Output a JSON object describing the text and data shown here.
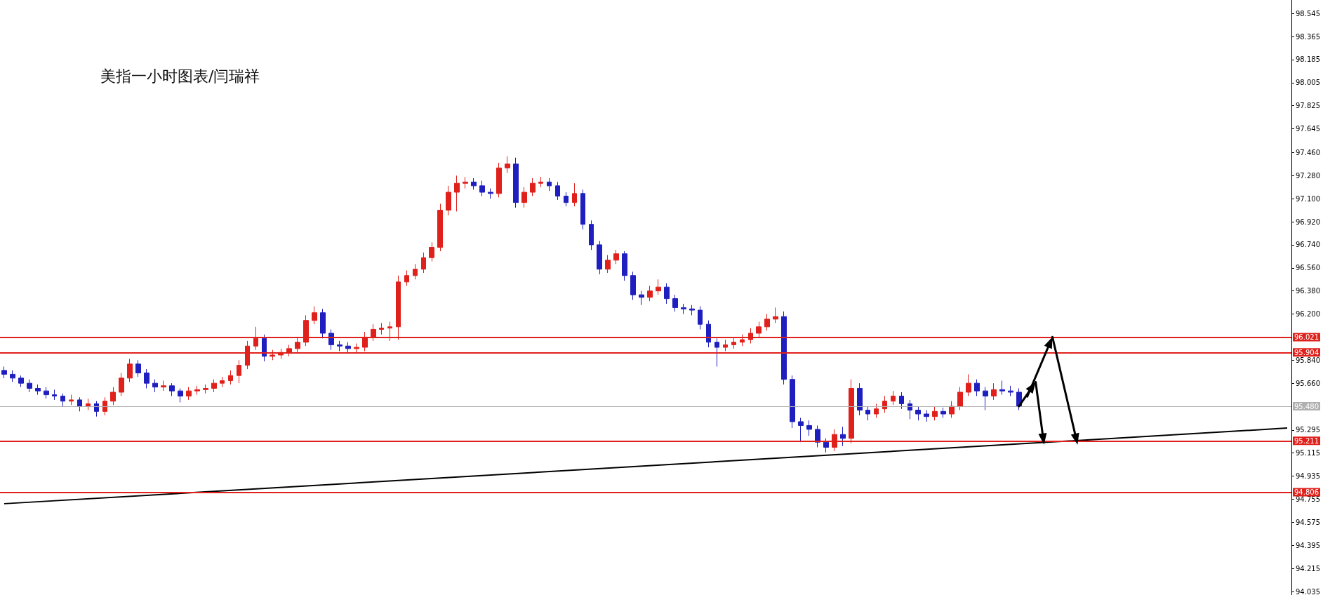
{
  "chart_data": {
    "type": "candlestick",
    "title": "美指一小时图表/闫瑞祥",
    "categories": [
      null,
      null,
      null,
      null,
      null,
      null,
      null,
      null,
      null,
      null,
      null,
      null,
      null,
      null,
      null,
      null,
      null,
      null,
      null,
      null,
      null,
      null,
      null,
      null,
      null,
      null,
      null,
      null,
      null,
      null,
      null,
      null,
      null,
      null,
      null,
      null,
      null,
      null,
      null,
      null,
      null,
      null,
      null,
      null,
      null,
      null,
      null,
      null,
      null,
      null,
      null,
      null,
      null,
      null,
      null,
      null,
      null,
      null,
      null,
      null,
      null,
      null,
      null,
      null,
      null,
      null,
      null,
      null,
      null,
      null,
      null,
      null,
      null,
      null,
      null,
      null,
      null,
      null,
      null,
      null,
      null,
      null,
      null,
      null,
      null,
      null,
      null,
      null,
      null,
      null,
      null,
      null,
      null,
      null,
      null,
      null,
      null,
      null,
      null,
      null,
      null,
      null,
      null,
      null,
      null,
      null,
      null,
      null,
      null,
      null,
      null,
      null,
      null,
      null,
      null,
      null,
      null,
      null,
      null,
      null,
      null,
      null,
      null,
      null,
      null,
      null,
      null,
      null,
      null,
      null,
      null,
      null,
      null,
      null,
      null,
      null,
      null,
      null,
      null,
      null,
      null,
      null,
      null,
      null,
      null,
      null,
      null,
      null,
      null,
      null,
      null,
      null,
      null,
      null
    ],
    "series": [
      {
        "ohlc": [
          [
            95.76,
            95.79,
            95.7,
            95.73
          ],
          [
            95.73,
            95.76,
            95.67,
            95.7
          ],
          [
            95.7,
            95.72,
            95.63,
            95.66
          ],
          [
            95.66,
            95.69,
            95.59,
            95.62
          ],
          [
            95.62,
            95.65,
            95.57,
            95.6
          ],
          [
            95.6,
            95.63,
            95.54,
            95.57
          ],
          [
            95.57,
            95.61,
            95.53,
            95.56
          ],
          [
            95.56,
            95.58,
            95.48,
            95.52
          ],
          [
            95.52,
            95.57,
            95.49,
            95.53
          ],
          [
            95.53,
            95.55,
            95.44,
            95.48
          ],
          [
            95.48,
            95.54,
            95.45,
            95.5
          ],
          [
            95.5,
            95.52,
            95.4,
            95.44
          ],
          [
            95.44,
            95.55,
            95.41,
            95.52
          ],
          [
            95.52,
            95.63,
            95.49,
            95.59
          ],
          [
            95.59,
            95.74,
            95.56,
            95.7
          ],
          [
            95.7,
            95.85,
            95.67,
            95.81
          ],
          [
            95.81,
            95.84,
            95.71,
            95.74
          ],
          [
            95.74,
            95.77,
            95.62,
            95.66
          ],
          [
            95.66,
            95.69,
            95.59,
            95.63
          ],
          [
            95.63,
            95.68,
            95.6,
            95.64
          ],
          [
            95.64,
            95.66,
            95.56,
            95.6
          ],
          [
            95.6,
            95.62,
            95.51,
            95.56
          ],
          [
            95.56,
            95.63,
            95.53,
            95.6
          ],
          [
            95.6,
            95.64,
            95.57,
            95.61
          ],
          [
            95.61,
            95.65,
            95.58,
            95.62
          ],
          [
            95.62,
            95.69,
            95.59,
            95.66
          ],
          [
            95.66,
            95.71,
            95.63,
            95.68
          ],
          [
            95.68,
            95.76,
            95.65,
            95.72
          ],
          [
            95.72,
            95.84,
            95.66,
            95.8
          ],
          [
            95.8,
            95.99,
            95.77,
            95.95
          ],
          [
            95.95,
            96.1,
            95.92,
            96.01
          ],
          [
            96.01,
            96.04,
            95.83,
            95.87
          ],
          [
            95.87,
            95.92,
            95.84,
            95.88
          ],
          [
            95.88,
            95.93,
            95.85,
            95.9
          ],
          [
            95.9,
            95.96,
            95.87,
            95.93
          ],
          [
            95.93,
            96.02,
            95.9,
            95.98
          ],
          [
            95.98,
            96.19,
            95.95,
            96.15
          ],
          [
            96.15,
            96.26,
            96.12,
            96.21
          ],
          [
            96.21,
            96.24,
            96.01,
            96.05
          ],
          [
            96.05,
            96.08,
            95.92,
            95.96
          ],
          [
            95.96,
            95.99,
            95.91,
            95.95
          ],
          [
            95.95,
            95.98,
            95.89,
            95.93
          ],
          [
            95.93,
            95.97,
            95.9,
            95.94
          ],
          [
            95.94,
            96.06,
            95.91,
            96.02
          ],
          [
            96.02,
            96.12,
            95.99,
            96.08
          ],
          [
            96.08,
            96.13,
            96.04,
            96.09
          ],
          [
            96.09,
            96.14,
            95.99,
            96.1
          ],
          [
            96.1,
            96.5,
            96.0,
            96.45
          ],
          [
            96.45,
            96.54,
            96.42,
            96.5
          ],
          [
            96.5,
            96.59,
            96.47,
            96.55
          ],
          [
            96.55,
            96.68,
            96.52,
            96.64
          ],
          [
            96.64,
            96.76,
            96.61,
            96.72
          ],
          [
            96.72,
            97.06,
            96.69,
            97.01
          ],
          [
            97.01,
            97.2,
            96.97,
            97.15
          ],
          [
            97.15,
            97.28,
            97.0,
            97.22
          ],
          [
            97.22,
            97.27,
            97.18,
            97.23
          ],
          [
            97.23,
            97.26,
            97.17,
            97.2
          ],
          [
            97.2,
            97.24,
            97.12,
            97.15
          ],
          [
            97.15,
            97.18,
            97.1,
            97.14
          ],
          [
            97.14,
            97.38,
            97.11,
            97.34
          ],
          [
            97.34,
            97.43,
            97.3,
            97.37
          ],
          [
            97.37,
            97.42,
            97.03,
            97.07
          ],
          [
            97.07,
            97.19,
            97.03,
            97.15
          ],
          [
            97.15,
            97.26,
            97.12,
            97.22
          ],
          [
            97.22,
            97.27,
            97.19,
            97.23
          ],
          [
            97.23,
            97.26,
            97.16,
            97.2
          ],
          [
            97.2,
            97.23,
            97.09,
            97.12
          ],
          [
            97.12,
            97.15,
            97.04,
            97.07
          ],
          [
            97.07,
            97.22,
            97.04,
            97.14
          ],
          [
            97.14,
            97.17,
            96.86,
            96.9
          ],
          [
            96.9,
            96.93,
            96.7,
            96.74
          ],
          [
            96.74,
            96.77,
            96.51,
            96.55
          ],
          [
            96.55,
            96.66,
            96.52,
            96.62
          ],
          [
            96.62,
            96.7,
            96.59,
            96.67
          ],
          [
            96.67,
            96.69,
            96.46,
            96.5
          ],
          [
            96.5,
            96.53,
            96.31,
            96.35
          ],
          [
            96.35,
            96.38,
            96.27,
            96.33
          ],
          [
            96.33,
            96.42,
            96.3,
            96.38
          ],
          [
            96.38,
            96.47,
            96.35,
            96.41
          ],
          [
            96.41,
            96.44,
            96.28,
            96.32
          ],
          [
            96.32,
            96.35,
            96.22,
            96.25
          ],
          [
            96.25,
            96.28,
            96.2,
            96.24
          ],
          [
            96.24,
            96.27,
            96.19,
            96.23
          ],
          [
            96.23,
            96.26,
            96.08,
            96.12
          ],
          [
            96.12,
            96.15,
            95.94,
            95.98
          ],
          [
            95.98,
            96.01,
            95.79,
            95.94
          ],
          [
            95.94,
            96.0,
            95.91,
            95.96
          ],
          [
            95.96,
            96.02,
            95.93,
            95.98
          ],
          [
            95.98,
            96.04,
            95.95,
            96.0
          ],
          [
            96.0,
            96.09,
            95.97,
            96.05
          ],
          [
            96.05,
            96.14,
            96.02,
            96.1
          ],
          [
            96.1,
            96.2,
            96.07,
            96.16
          ],
          [
            96.16,
            96.25,
            96.13,
            96.18
          ],
          [
            96.18,
            96.22,
            95.65,
            95.69
          ],
          [
            95.69,
            95.72,
            95.31,
            95.36
          ],
          [
            95.36,
            95.39,
            95.2,
            95.33
          ],
          [
            95.33,
            95.37,
            95.25,
            95.3
          ],
          [
            95.3,
            95.33,
            95.16,
            95.2
          ],
          [
            95.2,
            95.23,
            95.12,
            95.16
          ],
          [
            95.16,
            95.3,
            95.13,
            95.26
          ],
          [
            95.26,
            95.32,
            95.17,
            95.23
          ],
          [
            95.23,
            95.69,
            95.19,
            95.62
          ],
          [
            95.62,
            95.66,
            95.41,
            95.45
          ],
          [
            95.45,
            95.48,
            95.37,
            95.42
          ],
          [
            95.42,
            95.5,
            95.39,
            95.46
          ],
          [
            95.46,
            95.56,
            95.43,
            95.52
          ],
          [
            95.52,
            95.6,
            95.49,
            95.56
          ],
          [
            95.56,
            95.59,
            95.46,
            95.5
          ],
          [
            95.5,
            95.53,
            95.38,
            95.45
          ],
          [
            95.45,
            95.48,
            95.37,
            95.42
          ],
          [
            95.42,
            95.45,
            95.36,
            95.4
          ],
          [
            95.4,
            95.48,
            95.37,
            95.44
          ],
          [
            95.44,
            95.47,
            95.39,
            95.42
          ],
          [
            95.42,
            95.52,
            95.39,
            95.48
          ],
          [
            95.48,
            95.63,
            95.45,
            95.59
          ],
          [
            95.59,
            95.73,
            95.56,
            95.66
          ],
          [
            95.66,
            95.69,
            95.56,
            95.6
          ],
          [
            95.6,
            95.63,
            95.45,
            95.56
          ],
          [
            95.56,
            95.66,
            95.53,
            95.61
          ],
          [
            95.61,
            95.68,
            95.57,
            95.6
          ],
          [
            95.6,
            95.64,
            95.56,
            95.59
          ],
          [
            95.59,
            95.62,
            95.45,
            95.48
          ],
          null,
          null,
          null,
          null,
          null,
          null,
          null,
          null,
          null,
          null,
          null,
          null,
          null,
          null,
          null,
          null,
          null,
          null,
          null,
          null,
          null,
          null,
          null,
          null,
          null,
          null,
          null,
          null,
          null,
          null,
          null,
          null
        ],
        "colors": [
          "#1f1fc0",
          "#1f1fc0",
          "#1f1fc0",
          "#1f1fc0",
          "#1f1fc0",
          "#1f1fc0",
          "#1f1fc0",
          "#1f1fc0",
          "#e0201b",
          "#1f1fc0",
          "#e0201b",
          "#1f1fc0",
          "#e0201b",
          "#e0201b",
          "#e0201b",
          "#e0201b",
          "#1f1fc0",
          "#1f1fc0",
          "#1f1fc0",
          "#e0201b",
          "#1f1fc0",
          "#1f1fc0",
          "#e0201b",
          "#e0201b",
          "#e0201b",
          "#e0201b",
          "#e0201b",
          "#e0201b",
          "#e0201b",
          "#e0201b",
          "#e0201b",
          "#1f1fc0",
          "#e0201b",
          "#e0201b",
          "#e0201b",
          "#e0201b",
          "#e0201b",
          "#e0201b",
          "#1f1fc0",
          "#1f1fc0",
          "#1f1fc0",
          "#1f1fc0",
          "#e0201b",
          "#e0201b",
          "#e0201b",
          "#e0201b",
          "#e0201b",
          "#e0201b",
          "#e0201b",
          "#e0201b",
          "#e0201b",
          "#e0201b",
          "#e0201b",
          "#e0201b",
          "#e0201b",
          "#e0201b",
          "#1f1fc0",
          "#1f1fc0",
          "#1f1fc0",
          "#e0201b",
          "#e0201b",
          "#1f1fc0",
          "#e0201b",
          "#e0201b",
          "#e0201b",
          "#1f1fc0",
          "#1f1fc0",
          "#1f1fc0",
          "#e0201b",
          "#1f1fc0",
          "#1f1fc0",
          "#1f1fc0",
          "#e0201b",
          "#e0201b",
          "#1f1fc0",
          "#1f1fc0",
          "#1f1fc0",
          "#e0201b",
          "#e0201b",
          "#1f1fc0",
          "#1f1fc0",
          "#1f1fc0",
          "#1f1fc0",
          "#1f1fc0",
          "#1f1fc0",
          "#1f1fc0",
          "#e0201b",
          "#e0201b",
          "#e0201b",
          "#e0201b",
          "#e0201b",
          "#e0201b",
          "#e0201b",
          "#1f1fc0",
          "#1f1fc0",
          "#1f1fc0",
          "#1f1fc0",
          "#1f1fc0",
          "#1f1fc0",
          "#e0201b",
          "#1f1fc0",
          "#e0201b",
          "#1f1fc0",
          "#1f1fc0",
          "#e0201b",
          "#e0201b",
          "#e0201b",
          "#1f1fc0",
          "#1f1fc0",
          "#1f1fc0",
          "#1f1fc0",
          "#e0201b",
          "#1f1fc0",
          "#e0201b",
          "#e0201b",
          "#e0201b",
          "#1f1fc0",
          "#1f1fc0",
          "#e0201b",
          "#1f1fc0",
          "#1f1fc0",
          "#1f1fc0",
          null,
          null,
          null,
          null,
          null,
          null,
          null,
          null,
          null,
          null,
          null,
          null,
          null,
          null,
          null,
          null,
          null,
          null,
          null,
          null,
          null,
          null,
          null,
          null,
          null,
          null,
          null,
          null,
          null,
          null,
          null,
          null
        ]
      },
      {
        "type": "line",
        "color": "#000000",
        "values": [
          94.72,
          null,
          null,
          null,
          null,
          null,
          null,
          null,
          null,
          null,
          null,
          null,
          null,
          null,
          null,
          null,
          null,
          null,
          null,
          null,
          null,
          null,
          null,
          null,
          null,
          null,
          null,
          null,
          null,
          null,
          null,
          null,
          null,
          null,
          null,
          null,
          null,
          null,
          null,
          null,
          null,
          null,
          null,
          null,
          null,
          null,
          null,
          null,
          null,
          null,
          null,
          null,
          null,
          null,
          null,
          null,
          null,
          null,
          null,
          null,
          null,
          null,
          null,
          null,
          null,
          null,
          null,
          null,
          null,
          null,
          null,
          null,
          null,
          null,
          null,
          null,
          null,
          null,
          null,
          null,
          null,
          null,
          null,
          null,
          null,
          null,
          null,
          null,
          null,
          null,
          null,
          null,
          null,
          null,
          null,
          null,
          null,
          null,
          null,
          null,
          null,
          null,
          null,
          null,
          null,
          null,
          null,
          null,
          null,
          null,
          null,
          null,
          null,
          null,
          null,
          null,
          null,
          null,
          null,
          null,
          null,
          null,
          null,
          null,
          null,
          null,
          null,
          null,
          null,
          null,
          null,
          null,
          null,
          null,
          null,
          null,
          null,
          null,
          null,
          null,
          null,
          null,
          null,
          null,
          null,
          null,
          null,
          null,
          null,
          null,
          null,
          null,
          null,
          95.31
        ]
      }
    ],
    "ylim": [
      94.01,
      98.65
    ],
    "yticks": [
      98.545,
      98.365,
      98.185,
      98.005,
      97.825,
      97.645,
      {
        "value": 97.46,
        "label": "97.460"
      },
      {
        "value": 97.28,
        "label": "97.280"
      },
      {
        "value": 97.1,
        "label": "97.100"
      },
      {
        "value": 96.92,
        "label": "96.920"
      },
      {
        "value": 96.74,
        "label": "96.740"
      },
      {
        "value": 96.56,
        "label": "96.560"
      },
      {
        "value": 96.38,
        "label": "96.380"
      },
      {
        "value": 96.2,
        "label": "96.200"
      },
      {
        "value": 95.84,
        "label": "95.840"
      },
      {
        "value": 95.66,
        "label": "95.660"
      },
      95.295,
      95.115,
      94.935,
      94.755,
      94.575,
      94.395,
      94.215,
      94.035
    ],
    "ref_lines": [
      {
        "axis": "y",
        "value": 96.021,
        "label": "96.021",
        "color": "#e0201b"
      },
      {
        "axis": "y",
        "value": 95.904,
        "label": "95.904",
        "color": "#e0201b"
      },
      {
        "axis": "y",
        "value": 95.211,
        "label": "95.211",
        "color": "#e0201b"
      },
      {
        "axis": "y",
        "value": 94.806,
        "label": "94.806",
        "color": "#e0201b"
      },
      {
        "axis": "y",
        "value": 95.48,
        "label": "95.480",
        "color": "#b0b0b0"
      }
    ],
    "tick_labels": "y",
    "grid": false
  }
}
